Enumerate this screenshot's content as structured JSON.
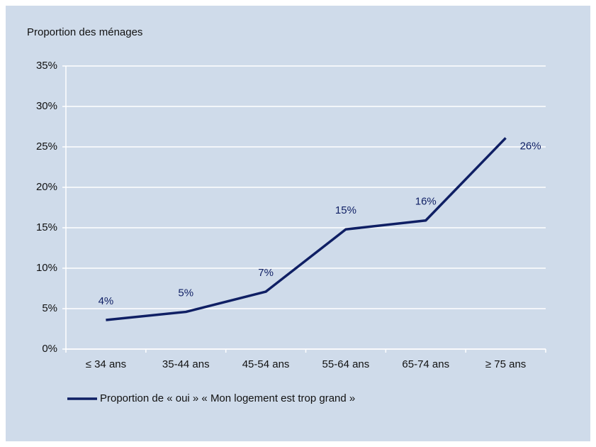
{
  "chart_data": {
    "type": "line",
    "y_axis_label": "Proportion des ménages",
    "categories": [
      "≤ 34 ans",
      "35-44 ans",
      "45-54 ans",
      "55-64 ans",
      "65-74 ans",
      "≥ 75 ans"
    ],
    "series": [
      {
        "name": "Proportion de « oui » « Mon logement est trop grand »",
        "color": "#0f1f64",
        "values": [
          3.6,
          4.6,
          7.1,
          14.8,
          15.9,
          26.1
        ],
        "value_labels": [
          "4%",
          "5%",
          "7%",
          "15%",
          "16%",
          "26%"
        ]
      }
    ],
    "ylim": [
      0,
      35
    ],
    "yticks": [
      {
        "value": 0,
        "label": "0%"
      },
      {
        "value": 5,
        "label": "5%"
      },
      {
        "value": 10,
        "label": "10%"
      },
      {
        "value": 15,
        "label": "15%"
      },
      {
        "value": 20,
        "label": "20%"
      },
      {
        "value": 25,
        "label": "25%"
      },
      {
        "value": 30,
        "label": "30%"
      },
      {
        "value": 35,
        "label": "35%"
      }
    ],
    "grid": true
  }
}
